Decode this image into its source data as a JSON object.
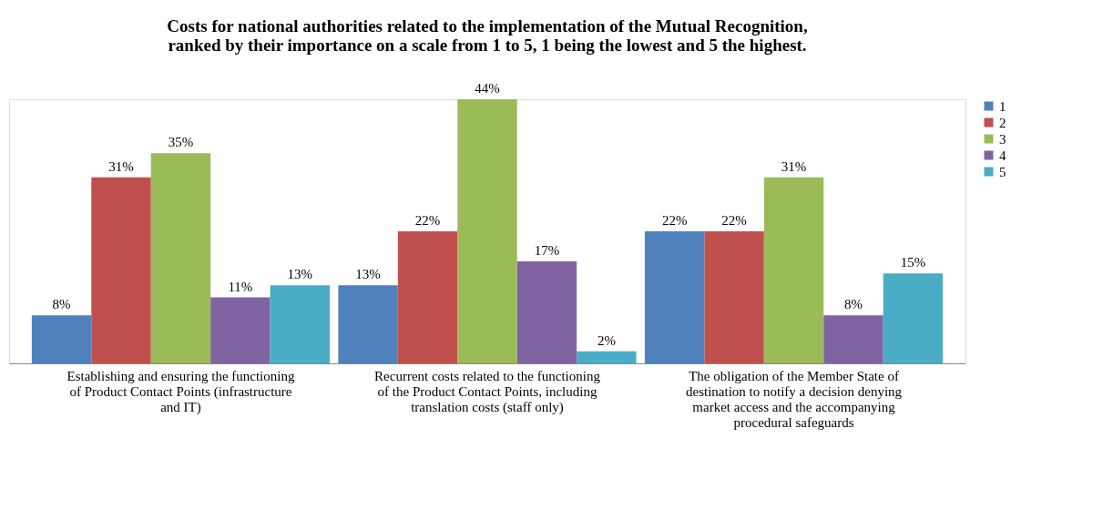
{
  "chart_data": {
    "type": "bar",
    "title": "Costs for national authorities related to the implementation of the Mutual Recognition, ranked by their importance on a scale from 1 to 5, 1 being the lowest and 5 the highest.",
    "categories": [
      "Establishing and ensuring the functioning of Product Contact Points (infrastructure and IT)",
      "Recurrent costs related to the functioning of the Product Contact Points, including translation costs (staff only)",
      "The obligation of the Member State of destination to notify a decision denying market access and the accompanying procedural safeguards"
    ],
    "series": [
      {
        "name": "1",
        "color": "#4f81bd",
        "values": [
          8,
          13,
          22
        ],
        "value_labels": [
          "8%",
          "13%",
          "22%"
        ]
      },
      {
        "name": "2",
        "color": "#c0504d",
        "values": [
          31,
          22,
          22
        ],
        "value_labels": [
          "31%",
          "22%",
          "22%"
        ]
      },
      {
        "name": "3",
        "color": "#9bbb59",
        "values": [
          35,
          44,
          31
        ],
        "value_labels": [
          "35%",
          "44%",
          "31%"
        ]
      },
      {
        "name": "4",
        "color": "#8064a2",
        "values": [
          11,
          17,
          8
        ],
        "value_labels": [
          "11%",
          "17%",
          "8%"
        ]
      },
      {
        "name": "5",
        "color": "#4bacc6",
        "values": [
          13,
          2,
          15
        ],
        "value_labels": [
          "13%",
          "2%",
          "15%"
        ]
      }
    ],
    "legend": "right",
    "grid": false
  }
}
